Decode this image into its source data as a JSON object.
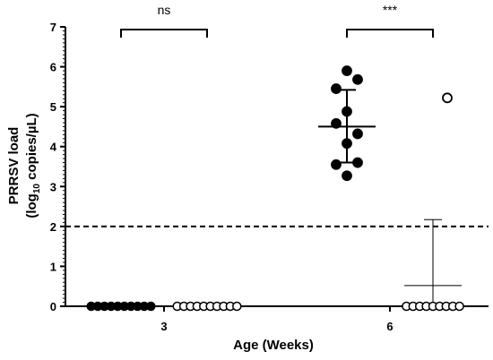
{
  "chart_data": {
    "type": "scatter",
    "xlabel": "Age (Weeks)",
    "ylabel_line1": "PRRSV load",
    "ylabel_line2_pre": "(log",
    "ylabel_line2_sub": "10",
    "ylabel_line2_post": " copies/µL)",
    "ylim": [
      0,
      7
    ],
    "y_ticks": [
      "0",
      "1",
      "2",
      "3",
      "4",
      "5",
      "6",
      "7"
    ],
    "x_ticks": [
      "3",
      "6"
    ],
    "threshold": 2,
    "groups": [
      {
        "x_group": "3",
        "style": "filled",
        "values": [
          0,
          0,
          0,
          0,
          0,
          0,
          0,
          0,
          0,
          0
        ],
        "mean": null,
        "sd_upper": null,
        "sd_lower": null
      },
      {
        "x_group": "3",
        "style": "open",
        "values": [
          0,
          0,
          0,
          0,
          0,
          0,
          0,
          0,
          0,
          0
        ],
        "mean": null,
        "sd_upper": null,
        "sd_lower": null
      },
      {
        "x_group": "6",
        "style": "filled",
        "values": [
          5.9,
          5.68,
          5.45,
          4.88,
          4.58,
          4.32,
          4.08,
          3.6,
          3.55,
          3.27
        ],
        "mean": 4.5,
        "sd_upper": 5.42,
        "sd_lower": 3.6
      },
      {
        "x_group": "6",
        "style": "open",
        "values": [
          5.22,
          0,
          0,
          0,
          0,
          0,
          0,
          0,
          0,
          0
        ],
        "mean": 0.52,
        "sd_upper": 2.17,
        "sd_lower": 0
      }
    ],
    "significance": [
      {
        "label": "ns",
        "x_group": "3"
      },
      {
        "label": "***",
        "x_group": "6"
      }
    ]
  }
}
